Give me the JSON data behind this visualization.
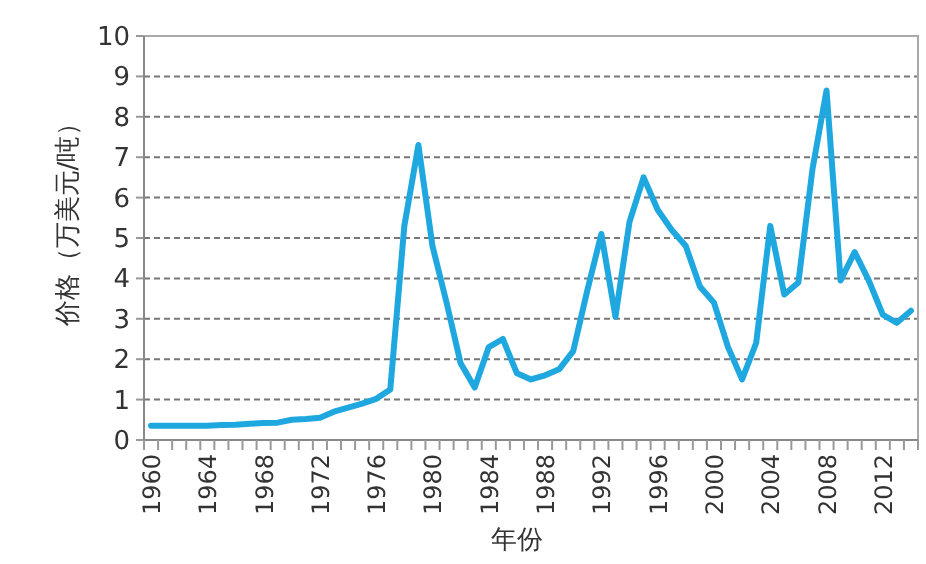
{
  "chart_data": {
    "type": "line",
    "xlabel": "年份",
    "ylabel": "价格（万美元/吨）",
    "categories": [
      "1960",
      null,
      null,
      null,
      "1964",
      null,
      null,
      null,
      "1968",
      null,
      null,
      null,
      "1972",
      null,
      null,
      null,
      "1976",
      null,
      null,
      null,
      "1980",
      null,
      null,
      null,
      "1984",
      null,
      null,
      null,
      "1988",
      null,
      null,
      null,
      "1992",
      null,
      null,
      null,
      "1996",
      null,
      null,
      null,
      "2000",
      null,
      null,
      null,
      "2004",
      null,
      null,
      null,
      "2008",
      null,
      null,
      null,
      "2012",
      null,
      null
    ],
    "series": [
      {
        "color": "#1fa8e0",
        "values": [
          0.35,
          0.35,
          0.35,
          0.35,
          0.35,
          0.37,
          0.38,
          0.4,
          0.42,
          0.43,
          0.5,
          0.52,
          0.55,
          0.7,
          0.8,
          0.9,
          1.02,
          1.25,
          5.3,
          7.3,
          4.8,
          3.4,
          1.9,
          1.3,
          2.3,
          2.5,
          1.65,
          1.5,
          1.6,
          1.75,
          2.2,
          3.7,
          5.1,
          3.05,
          5.4,
          6.5,
          5.7,
          5.2,
          4.8,
          3.8,
          3.4,
          2.3,
          1.5,
          2.4,
          5.3,
          3.6,
          3.9,
          6.7,
          8.65,
          3.95,
          4.65,
          3.95,
          3.1,
          2.9,
          3.2
        ]
      }
    ],
    "ylim": [
      0,
      10
    ],
    "yticks": [
      0,
      1,
      2,
      3,
      4,
      5,
      6,
      7,
      8,
      9,
      10
    ],
    "grid": "y",
    "line_style": "solid",
    "marker": "none"
  }
}
